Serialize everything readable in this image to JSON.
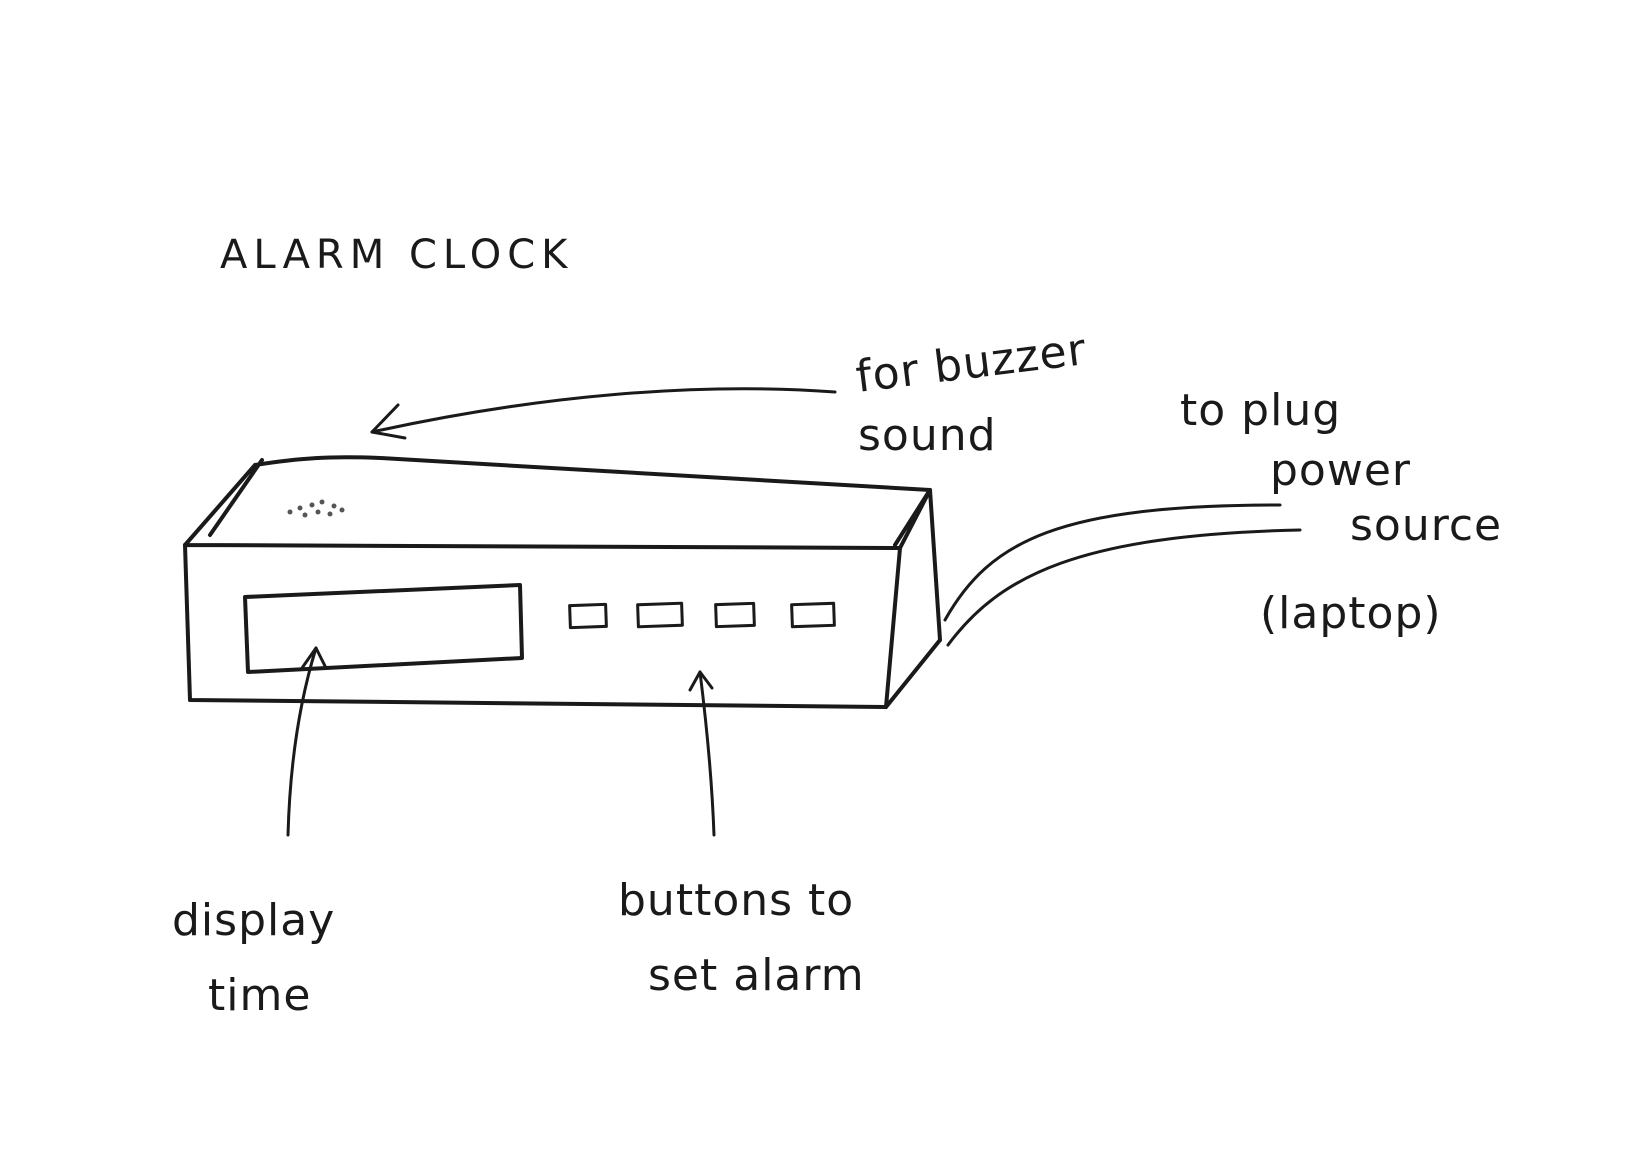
{
  "diagram": {
    "title": "ALARM CLOCK",
    "labels": {
      "buzzer_line1": "for buzzer",
      "buzzer_line2": "sound",
      "power_line1": "to plug",
      "power_line2": "power",
      "power_line3": "source",
      "power_line4": "(laptop)",
      "display_line1": "display",
      "display_line2": "time",
      "buttons_line1": "buttons to",
      "buttons_line2": "set alarm"
    },
    "components": {
      "button_count": 4
    }
  }
}
